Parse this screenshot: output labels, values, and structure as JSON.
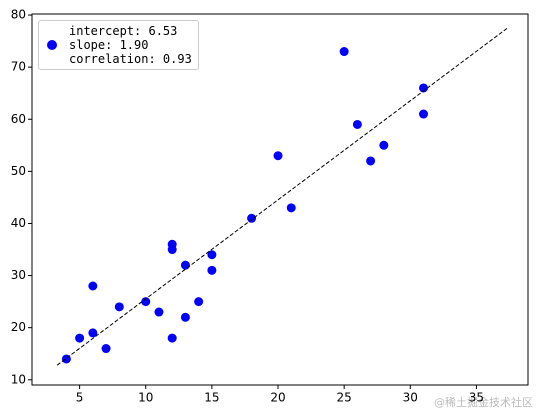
{
  "chart_data": {
    "type": "scatter",
    "x": [
      4,
      5,
      6,
      6,
      7,
      8,
      10,
      11,
      12,
      12,
      12,
      13,
      13,
      14,
      15,
      15,
      18,
      20,
      21,
      25,
      26,
      27,
      28,
      31,
      31
    ],
    "series": [
      {
        "name": "intercept: 6.53\nslope: 1.90\ncorrelation: 0.93",
        "color": "#0000ff",
        "values": [
          14,
          18,
          19,
          28,
          16,
          24,
          25,
          23,
          18,
          35,
          36,
          22,
          32,
          25,
          31,
          34,
          41,
          53,
          43,
          73,
          59,
          52,
          55,
          61,
          66
        ]
      }
    ],
    "fit_line": {
      "x": [
        3.3,
        37.4
      ],
      "values": [
        12.8,
        77.6
      ],
      "color": "#000000"
    },
    "xlim": [
      1.4,
      38.9
    ],
    "ylim": [
      9,
      80.2
    ],
    "xticks": [
      5,
      10,
      15,
      20,
      25,
      30,
      35
    ],
    "yticks": [
      10,
      20,
      30,
      40,
      50,
      60,
      70,
      80
    ],
    "legend": "upper left",
    "watermark": "@稀土掘金技术社区"
  }
}
